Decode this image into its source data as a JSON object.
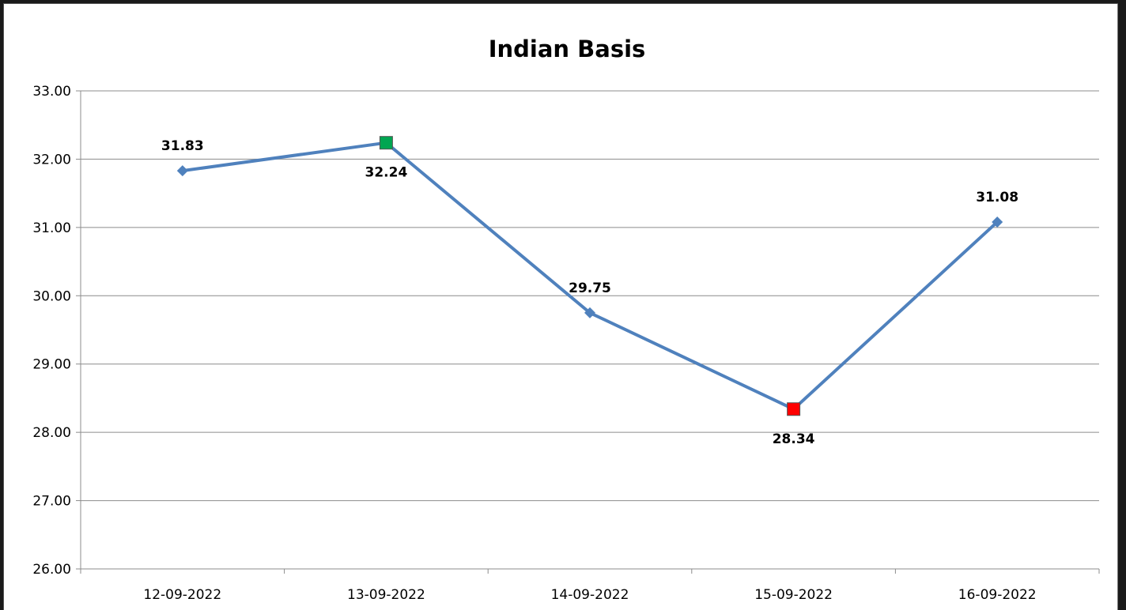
{
  "chart_data": {
    "type": "line",
    "title": "Indian Basis",
    "xlabel": "",
    "ylabel": "",
    "categories": [
      "12-09-2022",
      "13-09-2022",
      "14-09-2022",
      "15-09-2022",
      "16-09-2022"
    ],
    "series": [
      {
        "values": [
          31.83,
          32.24,
          29.75,
          28.34,
          31.08
        ],
        "data_labels": [
          "31.83",
          "32.24",
          "29.75",
          "28.34",
          "31.08"
        ],
        "color": "#4F81BD"
      }
    ],
    "yticks": [
      "26.00",
      "27.00",
      "28.00",
      "29.00",
      "30.00",
      "31.00",
      "32.00",
      "33.00"
    ],
    "ylim": [
      26,
      33
    ],
    "grid": "horizontal",
    "legend": "none",
    "highlights": {
      "max": {
        "index": 1,
        "color": "#00A651"
      },
      "min": {
        "index": 3,
        "color": "#FF0000"
      }
    }
  }
}
